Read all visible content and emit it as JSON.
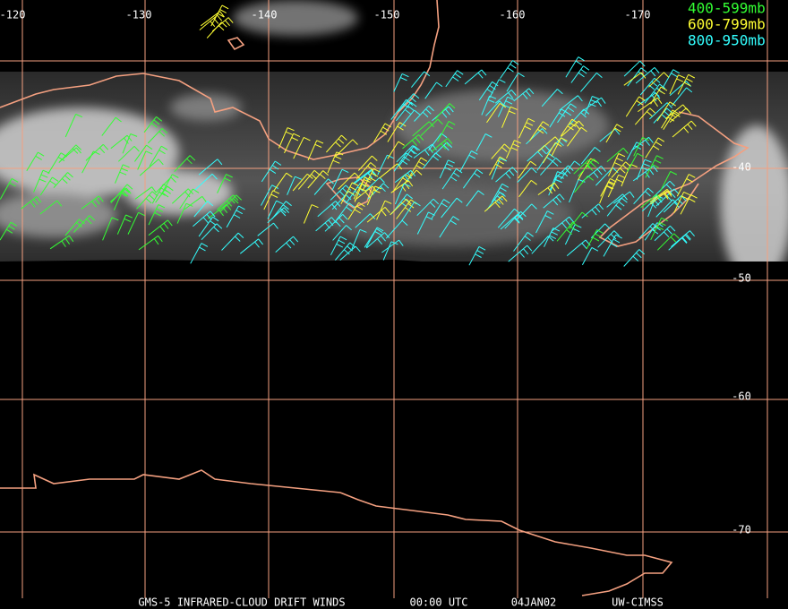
{
  "longitude_labels": [
    "-120",
    "-130",
    "-140",
    "-150",
    "-160",
    "-170"
  ],
  "latitude_labels": [
    "-40",
    "-50",
    "-60",
    "-70"
  ],
  "legend": [
    {
      "label": "400-599mb",
      "color": "#33ff33"
    },
    {
      "label": "600-799mb",
      "color": "#ffff33"
    },
    {
      "label": "800-950mb",
      "color": "#33ffff"
    }
  ],
  "footer": [
    "GMS-5 INFRARED-CLOUD DRIFT WINDS",
    "00:00 UTC",
    "04JAN02",
    "UW-CIMSS"
  ]
}
